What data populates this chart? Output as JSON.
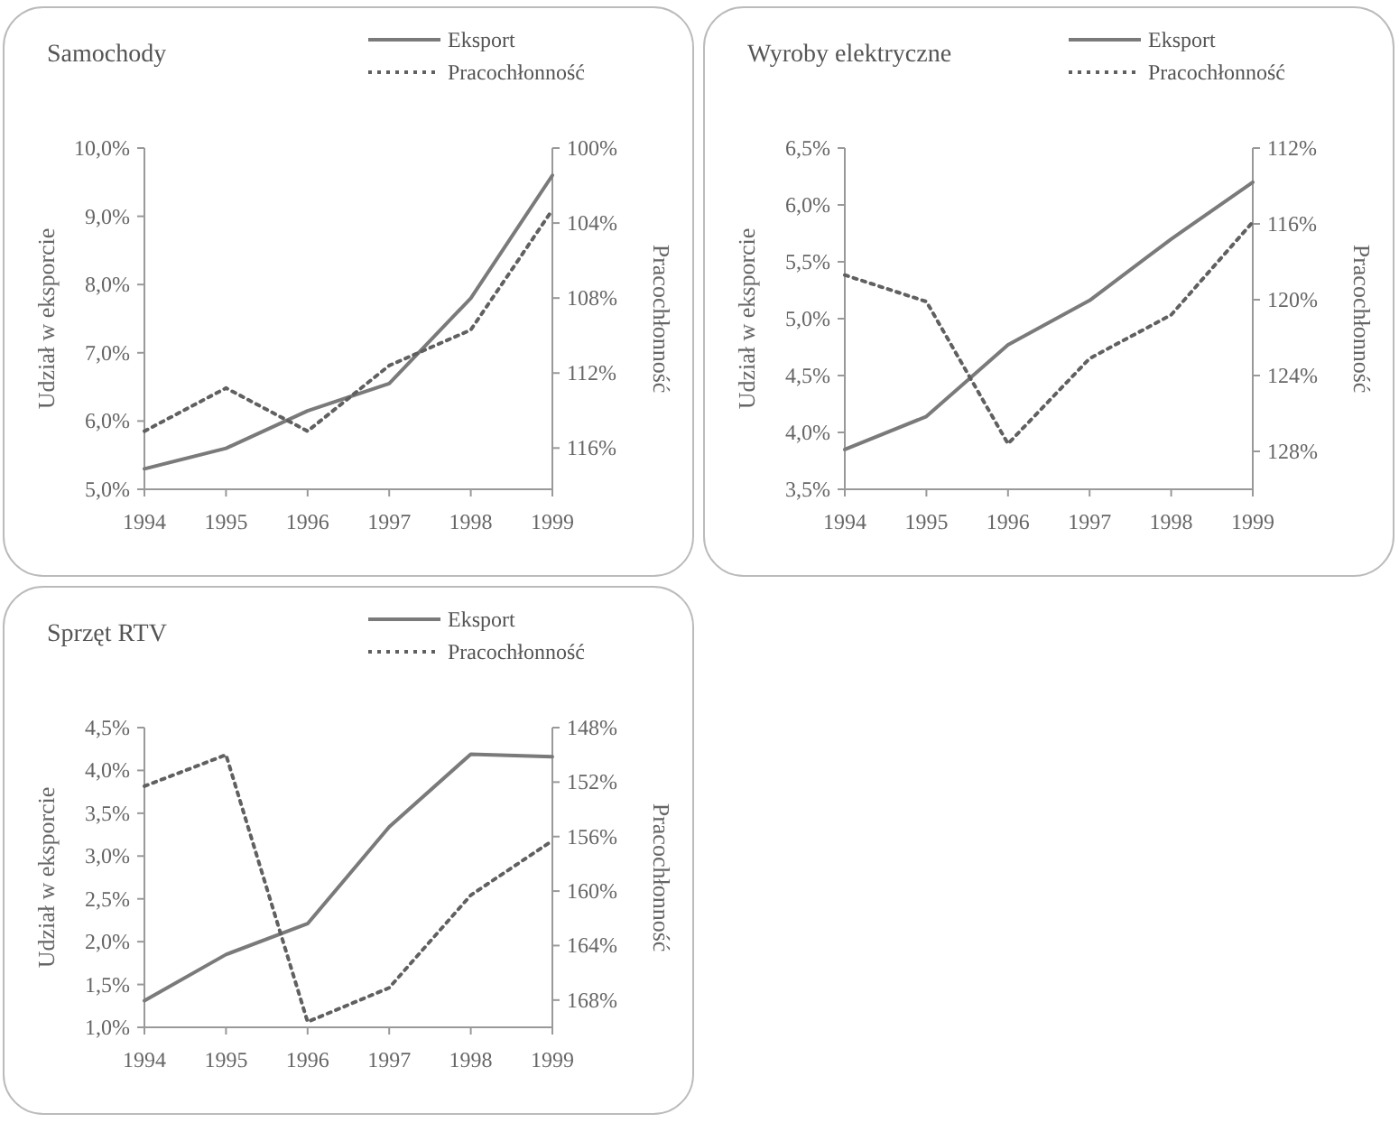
{
  "chart_data": [
    {
      "type": "line",
      "title": "Samochody",
      "categories": [
        "1994",
        "1995",
        "1996",
        "1997",
        "1998",
        "1999"
      ],
      "ylabel": "Udział w eksporcie",
      "y2label": "Pracochłonność",
      "ylim": [
        5,
        10
      ],
      "yticks": [
        {
          "value": 5,
          "label": "5,0%"
        },
        {
          "value": 6,
          "label": "6,0%"
        },
        {
          "value": 7,
          "label": "7,0%"
        },
        {
          "value": 8,
          "label": "8,0%"
        },
        {
          "value": 9,
          "label": "9,0%"
        },
        {
          "value": 10,
          "label": "10,0%"
        }
      ],
      "y2lim": [
        118.2,
        100
      ],
      "y2ticks": [
        {
          "value": 100,
          "label": "100%"
        },
        {
          "value": 104,
          "label": "104%"
        },
        {
          "value": 108,
          "label": "108%"
        },
        {
          "value": 112,
          "label": "112%"
        },
        {
          "value": 116,
          "label": "116%"
        }
      ],
      "legend": "top right",
      "grid": false,
      "series": [
        {
          "name": "Eksport",
          "color": "#7a7a7a",
          "line_style": "solid",
          "values": [
            5.3,
            5.6,
            6.15,
            6.55,
            7.8,
            9.6
          ]
        },
        {
          "name": "Pracochłonność",
          "color": "#606060",
          "line_style": "dotted",
          "axis": "y2",
          "values": [
            115.1,
            112.8,
            115.1,
            111.6,
            109.7,
            103.3
          ]
        }
      ]
    },
    {
      "type": "line",
      "title": "Wyroby elektryczne",
      "categories": [
        "1994",
        "1995",
        "1996",
        "1997",
        "1998",
        "1999"
      ],
      "ylabel": "Udział w eksporcie",
      "y2label": "Pracochłonność",
      "ylim": [
        3.5,
        6.5
      ],
      "yticks": [
        {
          "value": 3.5,
          "label": "3,5%"
        },
        {
          "value": 4,
          "label": "4,0%"
        },
        {
          "value": 4.5,
          "label": "4,5%"
        },
        {
          "value": 5,
          "label": "5,0%"
        },
        {
          "value": 5.5,
          "label": "5,5%"
        },
        {
          "value": 6,
          "label": "6,0%"
        },
        {
          "value": 6.5,
          "label": "6,5%"
        }
      ],
      "y2lim": [
        130,
        112
      ],
      "y2ticks": [
        {
          "value": 112,
          "label": "112%"
        },
        {
          "value": 116,
          "label": "116%"
        },
        {
          "value": 120,
          "label": "120%"
        },
        {
          "value": 124,
          "label": "124%"
        },
        {
          "value": 128,
          "label": "128%"
        }
      ],
      "legend": "top right",
      "grid": false,
      "series": [
        {
          "name": "Eksport",
          "color": "#7a7a7a",
          "line_style": "solid",
          "values": [
            3.85,
            4.14,
            4.77,
            5.16,
            5.7,
            6.2
          ]
        },
        {
          "name": "Pracochłonność",
          "color": "#606060",
          "line_style": "dotted",
          "axis": "y2",
          "values": [
            118.7,
            120.1,
            127.6,
            123.1,
            120.8,
            115.9
          ]
        }
      ]
    },
    {
      "type": "line",
      "title": "Sprzęt RTV",
      "categories": [
        "1994",
        "1995",
        "1996",
        "1997",
        "1998",
        "1999"
      ],
      "ylabel": "Udział w eksporcie",
      "y2label": "Pracochłonność",
      "ylim": [
        1,
        4.5
      ],
      "yticks": [
        {
          "value": 1,
          "label": "1,0%"
        },
        {
          "value": 1.5,
          "label": "1,5%"
        },
        {
          "value": 2,
          "label": "2,0%"
        },
        {
          "value": 2.5,
          "label": "2,5%"
        },
        {
          "value": 3,
          "label": "3,0%"
        },
        {
          "value": 3.5,
          "label": "3,5%"
        },
        {
          "value": 4,
          "label": "4,0%"
        },
        {
          "value": 4.5,
          "label": "4,5%"
        }
      ],
      "y2lim": [
        170,
        148
      ],
      "y2ticks": [
        {
          "value": 148,
          "label": "148%"
        },
        {
          "value": 152,
          "label": "152%"
        },
        {
          "value": 156,
          "label": "156%"
        },
        {
          "value": 160,
          "label": "160%"
        },
        {
          "value": 164,
          "label": "164%"
        },
        {
          "value": 168,
          "label": "168%"
        }
      ],
      "legend": "top right",
      "grid": false,
      "series": [
        {
          "name": "Eksport",
          "color": "#7a7a7a",
          "line_style": "solid",
          "values": [
            1.31,
            1.85,
            2.21,
            3.34,
            4.19,
            4.16
          ]
        },
        {
          "name": "Pracochłonność",
          "color": "#606060",
          "line_style": "dotted",
          "axis": "y2",
          "values": [
            152.3,
            150.0,
            169.6,
            167.1,
            160.3,
            156.3
          ]
        }
      ]
    }
  ]
}
